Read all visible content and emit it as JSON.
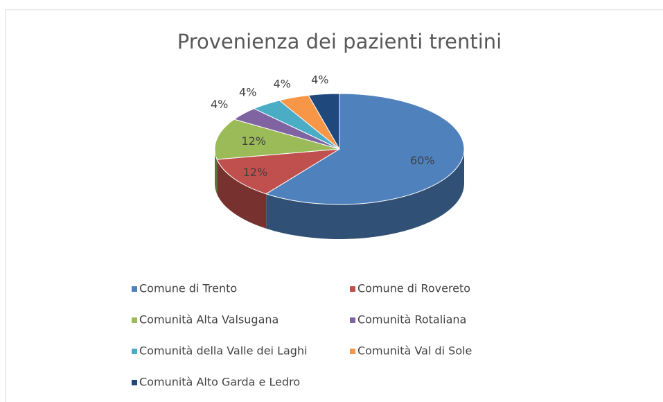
{
  "chart_data": {
    "type": "pie3d",
    "title": "Provenienza dei pazienti trentini",
    "categories": [
      "Comune di Trento",
      "Comune di Rovereto",
      "Comunità Alta Valsugana",
      "Comunità Rotaliana",
      "Comunità della Valle dei Laghi",
      "Comunità Val di Sole",
      "Comunità Alto Garda e Ledro"
    ],
    "values": [
      60,
      12,
      12,
      4,
      4,
      4,
      4
    ],
    "value_labels": [
      "60%",
      "12%",
      "12%",
      "4%",
      "4%",
      "4%",
      "4%"
    ],
    "colors": [
      "#4f81bd",
      "#c0504d",
      "#9bbb59",
      "#8064a2",
      "#4bacc6",
      "#f79646",
      "#1f497d"
    ],
    "legend": "bottom"
  }
}
